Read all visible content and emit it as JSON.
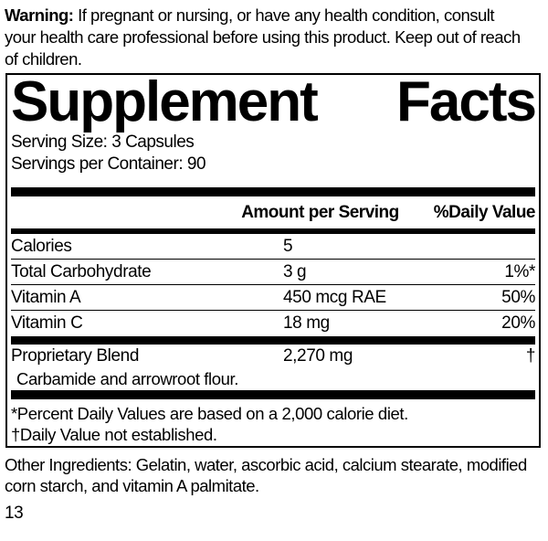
{
  "colors": {
    "text": "#000000",
    "background": "#ffffff",
    "rule": "#000000"
  },
  "warning": {
    "label": "Warning:",
    "line1_rest": " If pregnant or nursing, or have any health condition, consult",
    "line2": "your health care professional before using this product. Keep out of reach",
    "line3": "of children."
  },
  "panel": {
    "title_word1": "Supplement",
    "title_word2": "Facts",
    "serving_size": "Serving Size: 3 Capsules",
    "servings_per_container": "Servings per Container: 90",
    "columns": {
      "amount": "Amount per Serving",
      "daily_value": "%Daily Value"
    },
    "rows": [
      {
        "name": "Calories",
        "amount": "5",
        "dv": ""
      },
      {
        "name": "Total Carbohydrate",
        "amount": "3 g",
        "dv": "1%*"
      },
      {
        "name": "Vitamin A",
        "amount": "450 mcg RAE",
        "dv": "50%"
      },
      {
        "name": "Vitamin C",
        "amount": "18 mg",
        "dv": "20%"
      },
      {
        "name": "Proprietary Blend",
        "amount": "2,270 mg",
        "dv": "†",
        "sub": "Carbamide and arrowroot flour."
      }
    ],
    "footnotes": [
      "*Percent Daily Values are based on a 2,000 calorie diet.",
      "†Daily Value not established."
    ]
  },
  "other_ingredients": {
    "line1": "Other Ingredients: Gelatin, water, ascorbic acid, calcium stearate, modified",
    "line2": "corn starch, and vitamin A palmitate."
  },
  "page_number": "13"
}
